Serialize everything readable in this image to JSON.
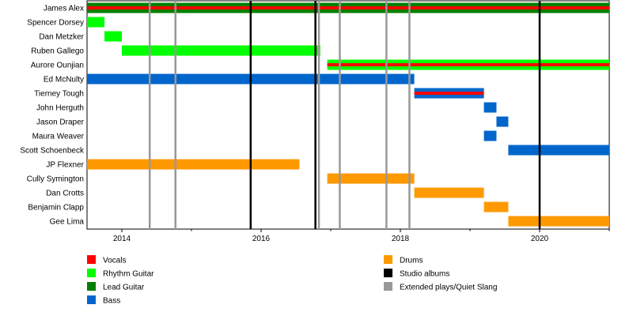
{
  "chart_data": {
    "type": "timeline",
    "xlim": [
      2013.5,
      2021.0
    ],
    "x_ticks": [
      {
        "value": 2014,
        "label": "2014"
      },
      {
        "value": 2016,
        "label": "2016"
      },
      {
        "value": 2018,
        "label": "2018"
      },
      {
        "value": 2020,
        "label": "2020"
      }
    ],
    "roles": {
      "vocals": {
        "label": "Vocals",
        "color": "#ff0000"
      },
      "rhythm": {
        "label": "Rhythm Guitar",
        "color": "#00ff00"
      },
      "lead": {
        "label": "Lead Guitar",
        "color": "#008000"
      },
      "bass": {
        "label": "Bass",
        "color": "#0066cc"
      },
      "drums": {
        "label": "Drums",
        "color": "#ff9900"
      },
      "studio": {
        "label": "Studio albums",
        "color": "#000000"
      },
      "ep": {
        "label": "Extended plays/Quiet Slang",
        "color": "#999999"
      }
    },
    "legend": {
      "columns": [
        [
          "vocals",
          "rhythm",
          "lead",
          "bass"
        ],
        [
          "drums",
          "studio",
          "ep"
        ]
      ]
    },
    "members": [
      {
        "name": "James Alex",
        "bars": [
          {
            "start": 2013.5,
            "end": 2021.0,
            "roles": [
              "lead",
              "vocals"
            ]
          }
        ]
      },
      {
        "name": "Spencer Dorsey",
        "bars": [
          {
            "start": 2013.5,
            "end": 2013.75,
            "roles": [
              "rhythm"
            ]
          }
        ]
      },
      {
        "name": "Dan Metzker",
        "bars": [
          {
            "start": 2013.75,
            "end": 2014.0,
            "roles": [
              "rhythm"
            ]
          }
        ]
      },
      {
        "name": "Ruben Gallego",
        "bars": [
          {
            "start": 2014.0,
            "end": 2016.85,
            "roles": [
              "rhythm"
            ]
          }
        ]
      },
      {
        "name": "Aurore Ounjian",
        "bars": [
          {
            "start": 2016.95,
            "end": 2021.0,
            "roles": [
              "rhythm",
              "vocals"
            ]
          }
        ]
      },
      {
        "name": "Ed McNulty",
        "bars": [
          {
            "start": 2013.5,
            "end": 2018.2,
            "roles": [
              "bass"
            ]
          }
        ]
      },
      {
        "name": "Tierney Tough",
        "bars": [
          {
            "start": 2018.2,
            "end": 2019.2,
            "roles": [
              "bass",
              "vocals"
            ]
          }
        ]
      },
      {
        "name": "John Herguth",
        "bars": [
          {
            "start": 2019.2,
            "end": 2019.38,
            "roles": [
              "bass"
            ]
          }
        ]
      },
      {
        "name": "Jason Draper",
        "bars": [
          {
            "start": 2019.38,
            "end": 2019.55,
            "roles": [
              "bass"
            ]
          }
        ]
      },
      {
        "name": "Maura Weaver",
        "bars": [
          {
            "start": 2019.2,
            "end": 2019.38,
            "roles": [
              "bass"
            ]
          }
        ]
      },
      {
        "name": "Scott Schoenbeck",
        "bars": [
          {
            "start": 2019.55,
            "end": 2021.0,
            "roles": [
              "bass"
            ]
          }
        ]
      },
      {
        "name": "JP Flexner",
        "bars": [
          {
            "start": 2013.5,
            "end": 2016.55,
            "roles": [
              "drums"
            ]
          }
        ]
      },
      {
        "name": "Cully Symington",
        "bars": [
          {
            "start": 2016.95,
            "end": 2018.2,
            "roles": [
              "drums"
            ]
          }
        ]
      },
      {
        "name": "Dan Crotts",
        "bars": [
          {
            "start": 2018.2,
            "end": 2019.2,
            "roles": [
              "drums"
            ]
          }
        ]
      },
      {
        "name": "Benjamin Clapp",
        "bars": [
          {
            "start": 2019.2,
            "end": 2019.55,
            "roles": [
              "drums"
            ]
          }
        ]
      },
      {
        "name": "Gee Lima",
        "bars": [
          {
            "start": 2019.55,
            "end": 2021.0,
            "roles": [
              "drums"
            ]
          }
        ]
      }
    ],
    "studio_albums": [
      2015.85,
      2016.78,
      2020.0
    ],
    "extended_plays": [
      2014.4,
      2014.77,
      2016.83,
      2017.13,
      2017.8,
      2018.13
    ]
  }
}
